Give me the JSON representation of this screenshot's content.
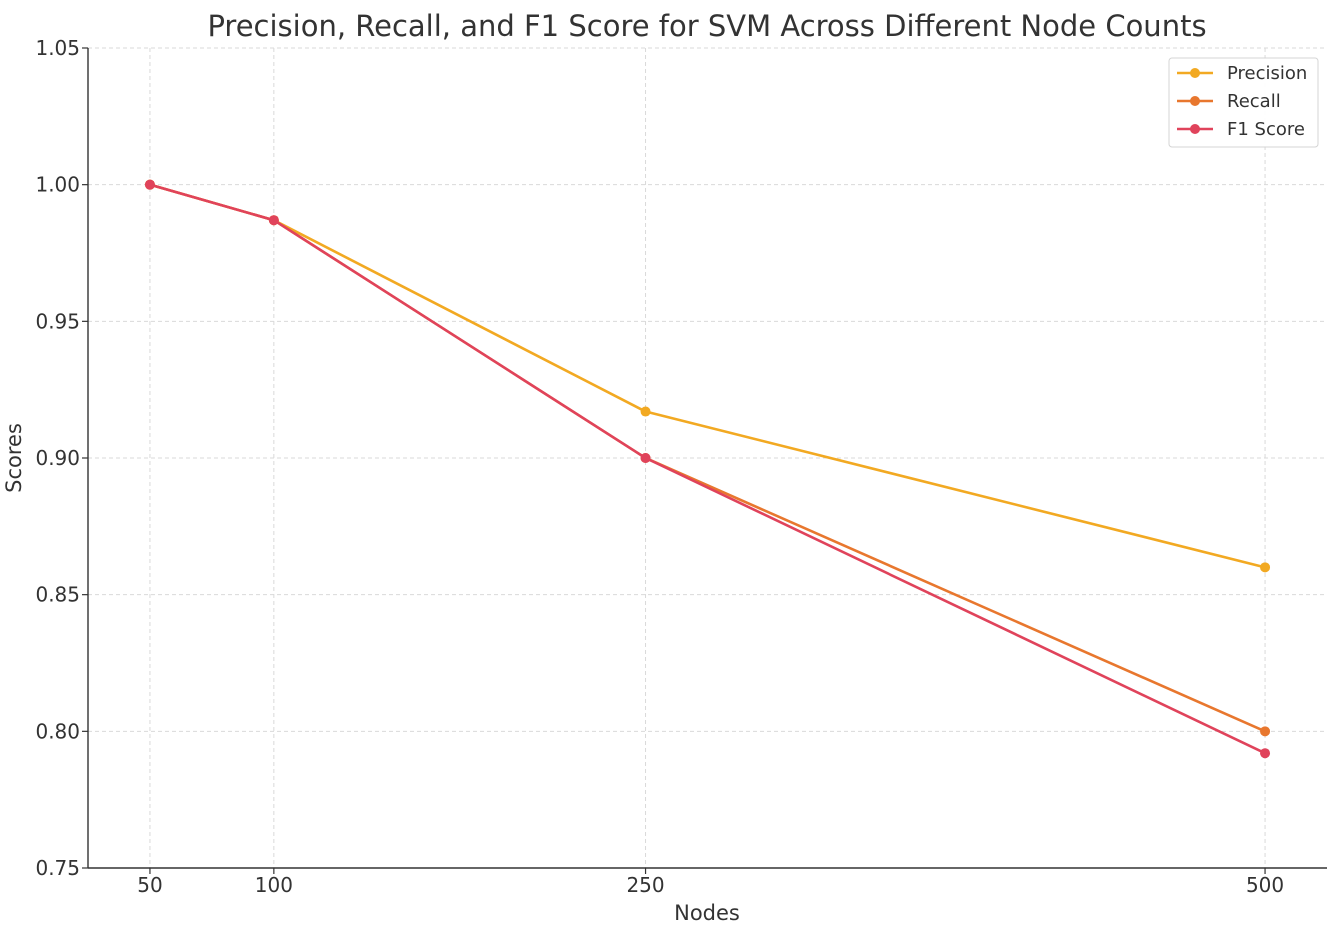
{
  "chart_data": {
    "type": "line",
    "title": "Precision, Recall, and F1 Score for SVM Across Different Node Counts",
    "xlabel": "Nodes",
    "ylabel": "Scores",
    "x": [
      50,
      100,
      250,
      500
    ],
    "xlim": [
      25,
      525
    ],
    "ylim": [
      0.75,
      1.05
    ],
    "xticks": [
      "50",
      "100",
      "250",
      "500"
    ],
    "yticks": [
      "0.75",
      "0.80",
      "0.85",
      "0.90",
      "0.95",
      "1.00",
      "1.05"
    ],
    "grid": true,
    "legend_position": "top-right",
    "series": [
      {
        "name": "Precision",
        "color": "#f2a922",
        "values": [
          1.0,
          0.987,
          0.917,
          0.86
        ]
      },
      {
        "name": "Recall",
        "color": "#e8772e",
        "values": [
          1.0,
          0.987,
          0.9,
          0.8
        ]
      },
      {
        "name": "F1 Score",
        "color": "#e0435b",
        "values": [
          1.0,
          0.987,
          0.9,
          0.792
        ]
      }
    ]
  }
}
